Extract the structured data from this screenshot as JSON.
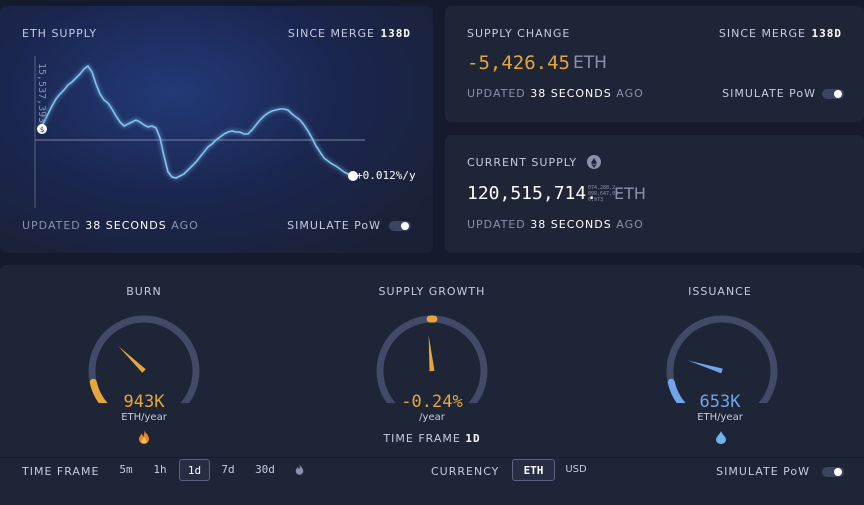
{
  "eth_supply_card": {
    "title": "ETH SUPPLY",
    "since_label": "SINCE MERGE",
    "since_value": "138d",
    "y_axis_label": "15,537,393",
    "end_rate": "+0.012%/y",
    "updated_prefix": "UPDATED",
    "updated_value": "38 SECONDS",
    "updated_suffix": "AGO",
    "simulate_label": "SIMULATE PoW"
  },
  "supply_change_card": {
    "title": "SUPPLY CHANGE",
    "since_label": "SINCE MERGE",
    "since_value": "138d",
    "value": "-5,426.45",
    "unit": "ETH",
    "updated_prefix": "UPDATED",
    "updated_value": "38 SECONDS",
    "updated_suffix": "AGO",
    "simulate_label": "SIMULATE PoW"
  },
  "current_supply_card": {
    "title": "CURRENT SUPPLY",
    "value": "120,515,714.",
    "decimals": [
      "074,288,2",
      "099,647,03",
      "0,073"
    ],
    "unit": "ETH",
    "updated_prefix": "UPDATED",
    "updated_value": "38 SECONDS",
    "updated_suffix": "AGO"
  },
  "gauges": {
    "burn": {
      "title": "BURN",
      "value": "943K",
      "unit": "ETH/year",
      "level": 0.33,
      "color": "#e8a63a",
      "icon": "flame-icon"
    },
    "supply_growth": {
      "title": "SUPPLY GROWTH",
      "value": "-0.24%",
      "unit": "/year",
      "level": -0.02,
      "color": "#e8a63a",
      "time_frame_label": "TIME FRAME",
      "time_frame_value": "1d"
    },
    "issuance": {
      "title": "ISSUANCE",
      "value": "653K",
      "unit": "ETH/year",
      "level": 0.23,
      "color": "#6fa6ea",
      "icon": "droplet-icon"
    }
  },
  "footer": {
    "time_frame_label": "TIME FRAME",
    "time_frames": [
      "5m",
      "1h",
      "1d",
      "7d",
      "30d"
    ],
    "active_time_frame": "1d",
    "currency_label": "CURRENCY",
    "currencies": [
      "ETH",
      "USD"
    ],
    "active_currency": "ETH",
    "simulate_label": "SIMULATE PoW"
  },
  "colors": {
    "orange": "#e8a63a",
    "blue": "#6fa6ea",
    "line": "#7fc4ef"
  }
}
